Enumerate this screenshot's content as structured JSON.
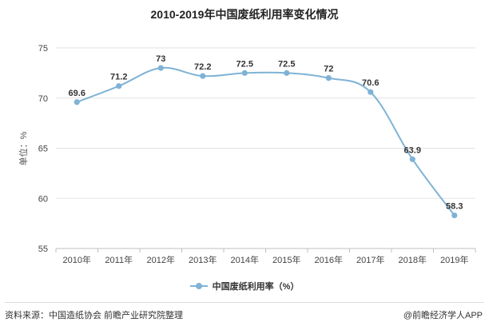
{
  "chart_data": {
    "type": "line",
    "title": "2010-2019年中国废纸利用率变化情况",
    "ylabel": "单位：%",
    "xlabel": "",
    "categories": [
      "2010年",
      "2011年",
      "2012年",
      "2013年",
      "2014年",
      "2015年",
      "2016年",
      "2017年",
      "2018年",
      "2019年"
    ],
    "series": [
      {
        "name": "中国废纸利用率（%）",
        "values": [
          69.6,
          71.2,
          73,
          72.2,
          72.5,
          72.5,
          72,
          70.6,
          63.9,
          58.3
        ],
        "labels": [
          "69.6",
          "71.2",
          "73",
          "72.2",
          "72.5",
          "72.5",
          "72",
          "70.6",
          "63.9",
          "58.3"
        ]
      }
    ],
    "ylim": [
      55,
      75
    ],
    "yticks": [
      "55",
      "60",
      "65",
      "70",
      "75"
    ],
    "grid": "horizontal",
    "legend": "bottom",
    "line_color": "#7fb3d5"
  },
  "footer": {
    "source": "资料来源：中国造纸协会 前瞻产业研究院整理",
    "credit": "@前瞻经济学人APP"
  }
}
